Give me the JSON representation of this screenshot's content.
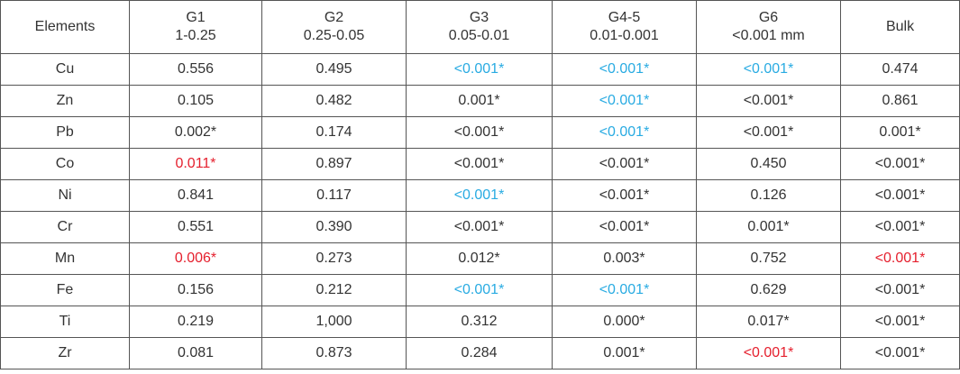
{
  "table": {
    "header": [
      [
        "Elements"
      ],
      [
        "G1",
        "1-0.25"
      ],
      [
        "G2",
        "0.25-0.05"
      ],
      [
        "G3",
        "0.05-0.01"
      ],
      [
        "G4-5",
        "0.01-0.001"
      ],
      [
        "G6",
        "<0.001 mm"
      ],
      [
        "Bulk"
      ]
    ],
    "rows": [
      [
        "Cu",
        "0.556",
        "0.495",
        {
          "text": "<0.001*",
          "color": "#29abe2"
        },
        {
          "text": "<0.001*",
          "color": "#29abe2"
        },
        {
          "text": "<0.001*",
          "color": "#29abe2"
        },
        "0.474"
      ],
      [
        "Zn",
        "0.105",
        "0.482",
        "0.001*",
        {
          "text": "<0.001*",
          "color": "#29abe2"
        },
        "<0.001*",
        "0.861"
      ],
      [
        "Pb",
        "0.002*",
        "0.174",
        "<0.001*",
        {
          "text": "<0.001*",
          "color": "#29abe2"
        },
        "<0.001*",
        "0.001*"
      ],
      [
        "Co",
        {
          "text": "0.011*",
          "color": "#e5202e"
        },
        "0.897",
        "<0.001*",
        "<0.001*",
        "0.450",
        "<0.001*"
      ],
      [
        "Ni",
        "0.841",
        "0.117",
        {
          "text": "<0.001*",
          "color": "#29abe2"
        },
        "<0.001*",
        "0.126",
        "<0.001*"
      ],
      [
        "Cr",
        "0.551",
        "0.390",
        "<0.001*",
        "<0.001*",
        "0.001*",
        "<0.001*"
      ],
      [
        "Mn",
        {
          "text": "0.006*",
          "color": "#e5202e"
        },
        "0.273",
        "0.012*",
        "0.003*",
        "0.752",
        {
          "text": "<0.001*",
          "color": "#e5202e"
        }
      ],
      [
        "Fe",
        "0.156",
        "0.212",
        {
          "text": "<0.001*",
          "color": "#29abe2"
        },
        {
          "text": "<0.001*",
          "color": "#29abe2"
        },
        "0.629",
        "<0.001*"
      ],
      [
        "Ti",
        "0.219",
        "1,000",
        "0.312",
        "0.000*",
        "0.017*",
        "<0.001*"
      ],
      [
        "Zr",
        "0.081",
        "0.873",
        "0.284",
        "0.001*",
        {
          "text": "<0.001*",
          "color": "#e5202e"
        },
        "<0.001*"
      ]
    ]
  }
}
